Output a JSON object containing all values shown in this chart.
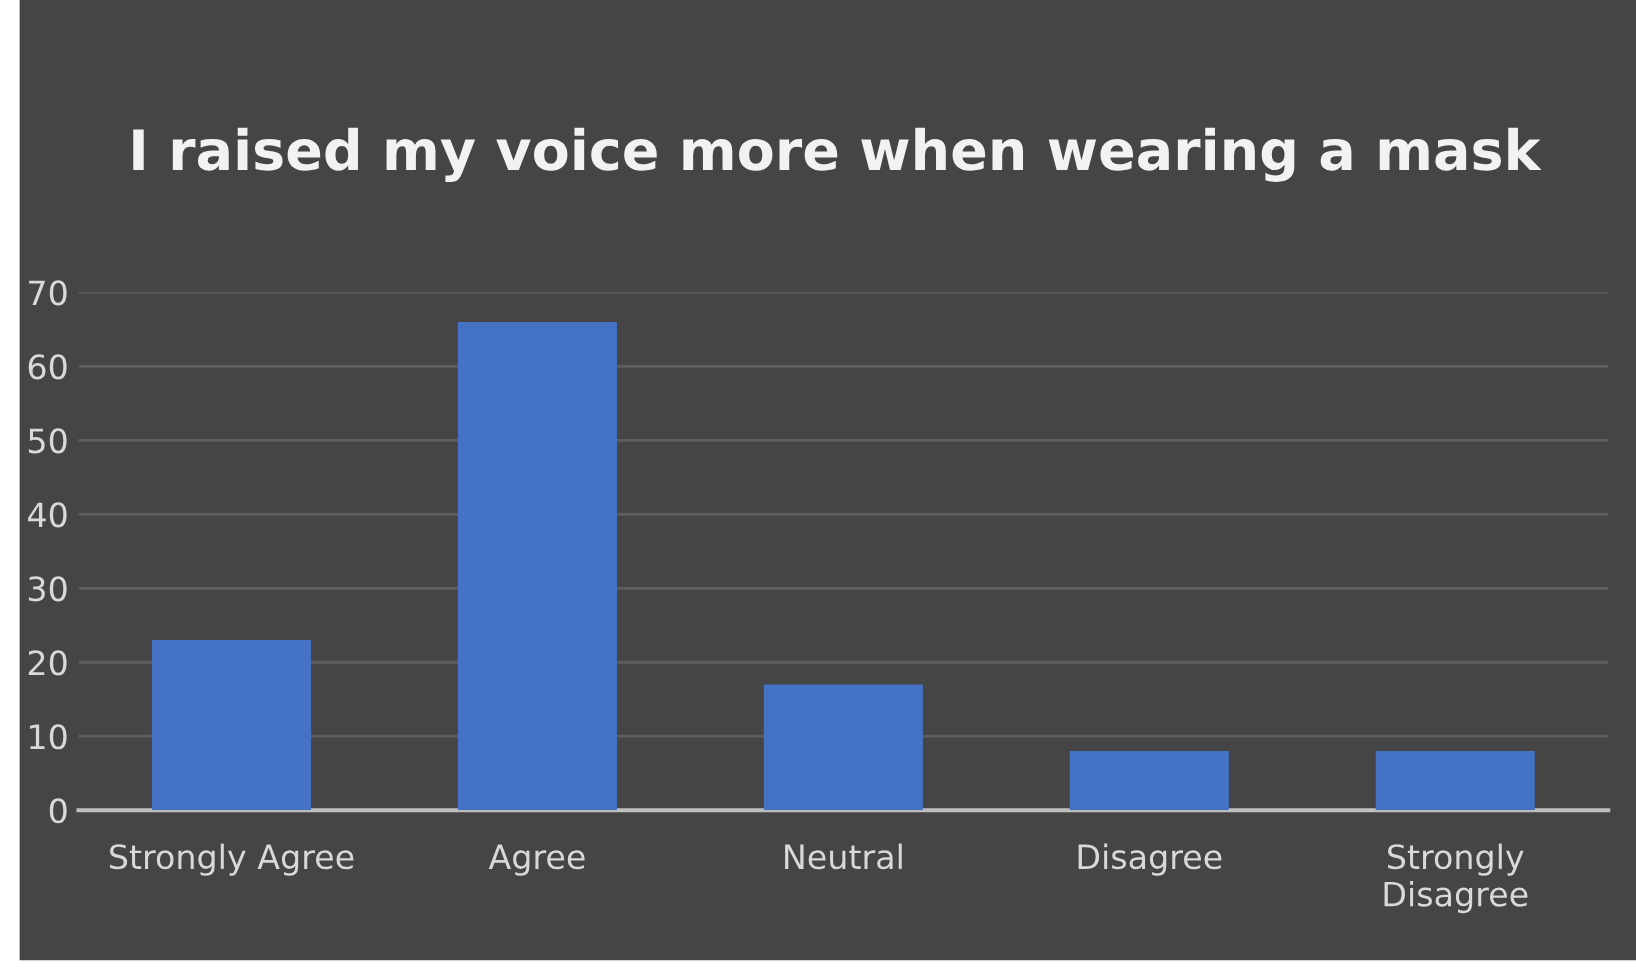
{
  "chart_data": {
    "type": "bar",
    "title": "I raised my voice more when wearing a mask",
    "categories": [
      "Strongly Agree",
      "Agree",
      "Neutral",
      "Disagree",
      "Strongly Disagree"
    ],
    "values": [
      23,
      66,
      17,
      8,
      8
    ],
    "color": "#4472c4",
    "ylim": [
      0,
      70
    ],
    "yticks": [
      0,
      10,
      20,
      30,
      40,
      50,
      60,
      70
    ],
    "grid": "y",
    "legend": false
  }
}
